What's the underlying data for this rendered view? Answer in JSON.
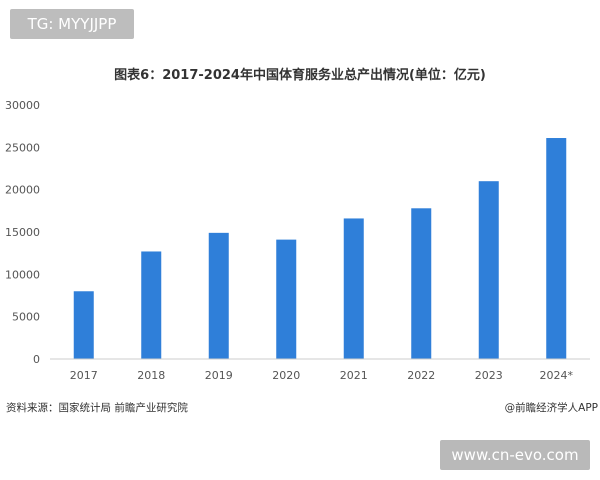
{
  "overlay": {
    "top_tag": "TG: MYYJJPP",
    "bottom_tag": "www.cn-evo.com"
  },
  "footer": {
    "source": "资料来源：国家统计局 前瞻产业研究院",
    "brand": "@前瞻经济学人APP"
  },
  "colors": {
    "bar": "#2f7fd9",
    "axis": "#cccccc",
    "text": "#333333"
  },
  "chart_data": {
    "type": "bar",
    "title": "图表6：2017-2024年中国体育服务业总产出情况(单位：亿元)",
    "categories": [
      "2017",
      "2018",
      "2019",
      "2020",
      "2021",
      "2022",
      "2023",
      "2024*"
    ],
    "values": [
      8000,
      12700,
      14900,
      14100,
      16600,
      17800,
      21000,
      26100
    ],
    "ylim": [
      0,
      30000
    ],
    "yticks": [
      0,
      5000,
      10000,
      15000,
      20000,
      25000,
      30000
    ],
    "xlabel": "",
    "ylabel": "",
    "grid": false,
    "legend": "none"
  }
}
